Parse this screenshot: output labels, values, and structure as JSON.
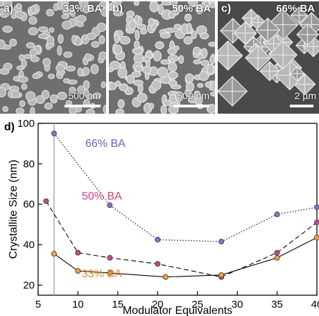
{
  "panels": [
    {
      "letter": "a)",
      "label": "33% BA",
      "scale": "500 nm"
    },
    {
      "letter": "b)",
      "label": "50% BA",
      "scale": "500 nm"
    },
    {
      "letter": "c)",
      "label": "66% BA",
      "scale": "2 µm"
    }
  ],
  "chart_data": {
    "type": "line",
    "panel_letter": "d)",
    "xlabel": "Modulator Equivalents",
    "ylabel": "Crystallite Size (nm)",
    "xlim": [
      5,
      40
    ],
    "ylim": [
      15,
      100
    ],
    "xticks": [
      5,
      10,
      15,
      20,
      25,
      30,
      35,
      40
    ],
    "yticks": [
      20,
      40,
      60,
      80,
      100
    ],
    "reference_line_x": 7,
    "grid": false,
    "series": [
      {
        "name": "66% BA",
        "color": "#7b78c8",
        "text_color": "#6a5fb5",
        "dash": "dotted",
        "x": [
          7,
          14,
          20,
          28,
          35,
          40
        ],
        "y": [
          95,
          59.5,
          42.5,
          41.5,
          55,
          58.5
        ]
      },
      {
        "name": "50% BA",
        "color": "#c8488a",
        "text_color": "#d0407a",
        "dash": "dashed",
        "x": [
          6,
          10,
          14,
          20,
          28,
          35,
          40
        ],
        "y": [
          61.5,
          36,
          33.5,
          30.5,
          24,
          36,
          51
        ]
      },
      {
        "name": "33% BA",
        "color": "#f0a040",
        "text_color": "#e08a2a",
        "dash": "solid",
        "x": [
          7,
          10,
          14,
          21,
          28,
          35,
          40
        ],
        "y": [
          35.5,
          27,
          26,
          24,
          25,
          33.5,
          43.5
        ]
      }
    ]
  }
}
